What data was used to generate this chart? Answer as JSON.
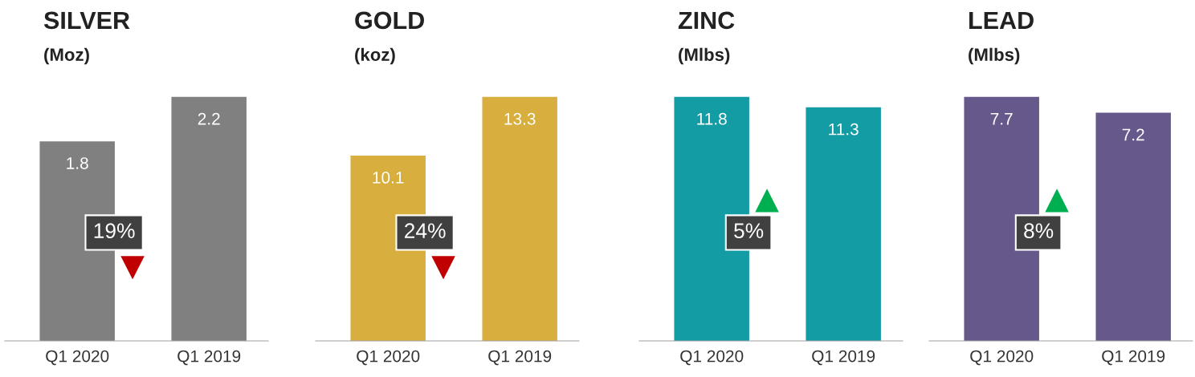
{
  "chart_data": [
    {
      "type": "bar",
      "title": "SILVER",
      "subtitle": "(Moz)",
      "categories": [
        "Q1 2020",
        "Q1 2019"
      ],
      "values": [
        1.8,
        2.2
      ],
      "color": "#808080",
      "data_labels": true,
      "annotations": [
        "19%"
      ]
    },
    {
      "type": "bar",
      "title": "GOLD",
      "subtitle": "(koz)",
      "categories": [
        "Q1 2020",
        "Q1 2019"
      ],
      "values": [
        10.1,
        13.3
      ],
      "color": "#d8ae3e",
      "data_labels": true,
      "annotations": [
        "24%"
      ]
    },
    {
      "type": "bar",
      "title": "ZINC",
      "subtitle": "(Mlbs)",
      "categories": [
        "Q1 2020",
        "Q1 2019"
      ],
      "values": [
        11.8,
        11.3
      ],
      "color": "#139ca4",
      "data_labels": true,
      "annotations": [
        "5%"
      ]
    },
    {
      "type": "bar",
      "title": "LEAD",
      "subtitle": "(Mlbs)",
      "categories": [
        "Q1 2020",
        "Q1 2019"
      ],
      "values": [
        7.7,
        7.2
      ],
      "color": "#67588c",
      "data_labels": true,
      "annotations": [
        "8%"
      ]
    }
  ]
}
